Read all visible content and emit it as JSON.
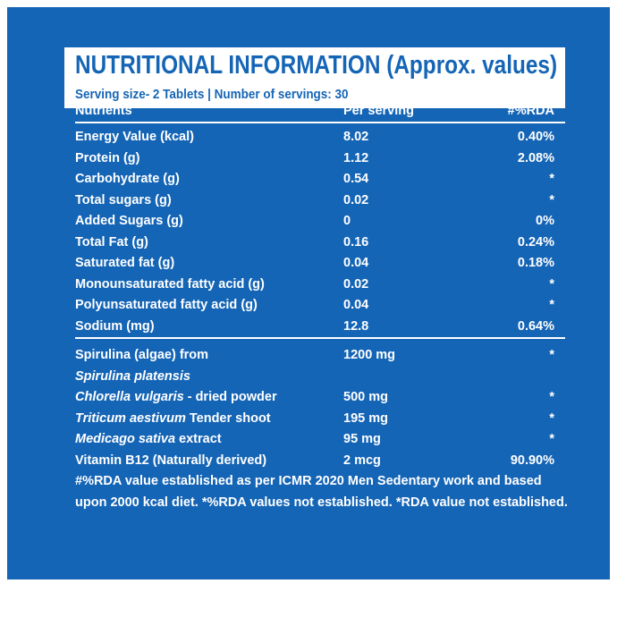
{
  "header": {
    "title": "NUTRITIONAL INFORMATION (Approx. values)",
    "serving": "Serving size- 2 Tablets | Number of servings: 30"
  },
  "table": {
    "columns": [
      "Nutrients",
      "Per serving",
      "#%RDA"
    ],
    "rows": [
      {
        "name": "Energy Value (kcal)",
        "per_serving": "8.02",
        "rda": "0.40%"
      },
      {
        "name": "Protein (g)",
        "per_serving": "1.12",
        "rda": "2.08%"
      },
      {
        "name": "Carbohydrate (g)",
        "per_serving": "0.54",
        "rda": "*"
      },
      {
        "name": "Total sugars (g)",
        "per_serving": "0.02",
        "rda": "*"
      },
      {
        "name": "Added Sugars (g)",
        "per_serving": "0",
        "rda": "0%"
      },
      {
        "name": "Total Fat (g)",
        "per_serving": "0.16",
        "rda": "0.24%"
      },
      {
        "name": "Saturated fat (g)",
        "per_serving": "0.04",
        "rda": "0.18%"
      },
      {
        "name": "Monounsaturated fatty acid (g)",
        "per_serving": "0.02",
        "rda": "*"
      },
      {
        "name": "Polyunsaturated fatty acid (g)",
        "per_serving": "0.04",
        "rda": "*"
      },
      {
        "name": "Sodium (mg)",
        "per_serving": "12.8",
        "rda": "0.64%"
      }
    ],
    "ingredients": [
      {
        "name": "Spirulina (algae) from",
        "per_serving": "1200 mg",
        "rda": "*"
      },
      {
        "name_italic": "Spirulina platensis"
      },
      {
        "name_italic": "Chlorella vulgaris",
        "name": " - dried powder",
        "per_serving": "500 mg",
        "rda": "*"
      },
      {
        "name_italic": "Triticum aestivum",
        "name": " Tender shoot",
        "per_serving": "195 mg",
        "rda": "*"
      },
      {
        "name_italic": "Medicago sativa",
        "name": " extract",
        "per_serving": "95 mg",
        "rda": "*"
      },
      {
        "name": "Vitamin B12 (Naturally derived)",
        "per_serving": "2 mcg",
        "rda": "90.90%"
      }
    ]
  },
  "footnote": "#%RDA value established as per ICMR 2020 Men Sedentary work and based upon 2000 kcal diet. *%RDA values not established. *RDA value not established."
}
